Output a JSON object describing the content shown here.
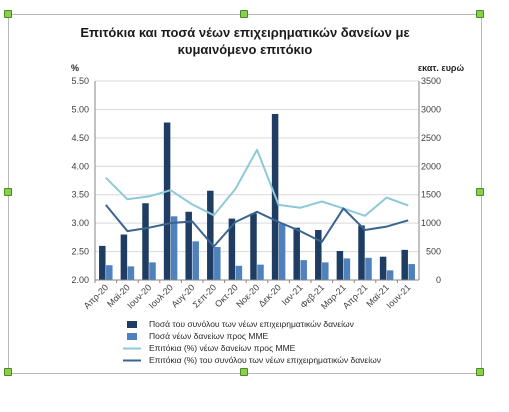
{
  "chart_data": {
    "type": "bar",
    "title": "Επιτόκια και ποσά νέων επιχειρηματικών δανείων με κυμαινόμενο επιτόκιο",
    "title_lines": [
      "Επιτόκια και ποσά νέων επιχειρηματικών δανείων με",
      "κυμαινόμενο επιτόκιο"
    ],
    "left_axis": {
      "unit": "%",
      "ylim": [
        2.0,
        5.5
      ],
      "ticks": [
        "2.00",
        "2.50",
        "3.00",
        "3.50",
        "4.00",
        "4.50",
        "5.00",
        "5.50"
      ]
    },
    "right_axis": {
      "unit": "εκατ. ευρώ",
      "ylim": [
        0,
        3500
      ],
      "ticks": [
        "0",
        "500",
        "1000",
        "1500",
        "2000",
        "2500",
        "3000",
        "3500"
      ]
    },
    "categories": [
      "Απρ-20",
      "Μαϊ-20",
      "Ιουν-20",
      "Ιουλ-20",
      "Αυγ-20",
      "Σεπ-20",
      "Οκτ-20",
      "Νοε-20",
      "Δεκ-20",
      "Ιαν-21",
      "Φεβ-21",
      "Μαρ-21",
      "Απρ-21",
      "Μαϊ-21",
      "Ιουν-21"
    ],
    "series": [
      {
        "name": "Ποσά του συνόλου των νέων επιχειρηματικών δανείων",
        "kind": "bar",
        "axis": "right",
        "color": "#1f3d63",
        "values": [
          600,
          800,
          1350,
          2770,
          1200,
          1570,
          1080,
          1170,
          2920,
          920,
          880,
          510,
          960,
          410,
          530
        ]
      },
      {
        "name": "Ποσά νέων δανείων προς ΜΜΕ",
        "kind": "bar",
        "axis": "right",
        "color": "#4f81bd",
        "values": [
          260,
          240,
          310,
          1120,
          680,
          580,
          250,
          270,
          990,
          350,
          310,
          380,
          390,
          170,
          280
        ]
      },
      {
        "name": "Επιτόκια (%) νέων δανείων προς ΜΜΕ",
        "kind": "line",
        "axis": "left",
        "color": "#8ec9d9",
        "values": [
          3.8,
          3.42,
          3.47,
          3.58,
          3.33,
          3.14,
          3.6,
          4.29,
          3.32,
          3.27,
          3.38,
          3.26,
          3.13,
          3.45,
          3.31
        ]
      },
      {
        "name": "Επιτόκια (%) του συνόλου των νέων επιχειρηματικών δανείων",
        "kind": "line",
        "axis": "left",
        "color": "#3b6591",
        "values": [
          3.32,
          2.86,
          2.92,
          3.0,
          3.03,
          2.59,
          3.02,
          3.2,
          3.02,
          2.86,
          2.67,
          3.26,
          2.88,
          2.94,
          3.05
        ]
      }
    ],
    "grid": true,
    "legend": "bottom"
  }
}
